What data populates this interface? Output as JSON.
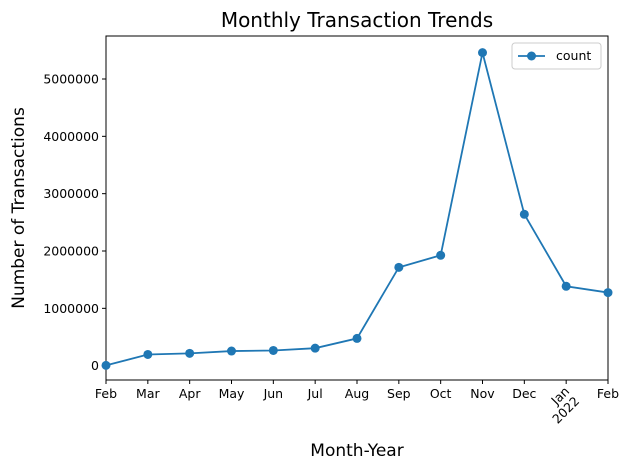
{
  "chart_data": {
    "type": "line",
    "title": "Monthly Transaction Trends",
    "xlabel": "Month-Year",
    "ylabel": "Number of Transactions",
    "categories": [
      "Feb",
      "Mar",
      "Apr",
      "May",
      "Jun",
      "Jul",
      "Aug",
      "Sep",
      "Oct",
      "Nov",
      "Dec",
      "Jan\n2022",
      "Feb"
    ],
    "series": [
      {
        "name": "count",
        "color": "#1f77b4",
        "values": [
          5000,
          195000,
          215000,
          255000,
          265000,
          305000,
          475000,
          1715000,
          1925000,
          5460000,
          2640000,
          1385000,
          1275000
        ]
      }
    ],
    "ylim": [
      -250000,
      5750000
    ],
    "yticks": [
      0,
      1000000,
      2000000,
      3000000,
      4000000,
      5000000
    ],
    "ytick_labels": [
      "0",
      "1000000",
      "2000000",
      "3000000",
      "4000000",
      "5000000"
    ],
    "legend": "top-right",
    "grid": false
  }
}
